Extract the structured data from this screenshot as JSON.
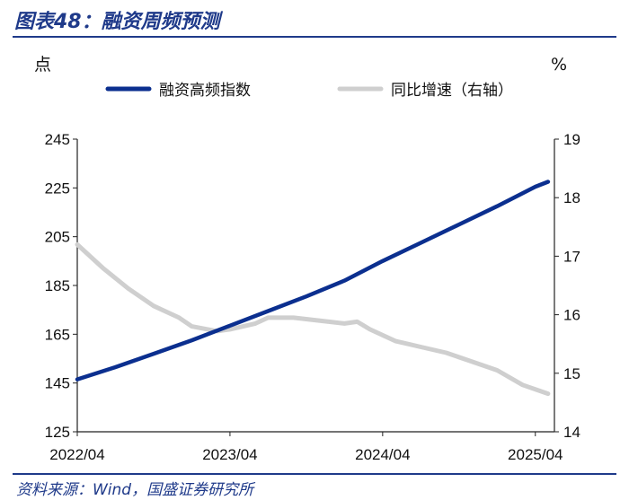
{
  "header": {
    "title": "图表48：融资周频预测"
  },
  "footer": {
    "source": "资料来源：Wind，国盛证券研究所"
  },
  "chart_data": {
    "type": "line",
    "title": "图表48：融资周频预测",
    "left_unit": "点",
    "right_unit": "%",
    "x_tick_labels": [
      "2022/04",
      "2023/04",
      "2024/04",
      "2025/04"
    ],
    "left_axis": {
      "ylim": [
        125,
        245
      ],
      "ticks": [
        "125",
        "145",
        "165",
        "185",
        "205",
        "225",
        "245"
      ]
    },
    "right_axis": {
      "ylim": [
        14,
        19
      ],
      "ticks": [
        "14",
        "15",
        "16",
        "17",
        "18",
        "19"
      ]
    },
    "grid": false,
    "legend_position": "top",
    "series": [
      {
        "name": "融资高频指数",
        "axis": "left",
        "color": "#0b2f8f",
        "points": [
          [
            "2022-04",
            146.5
          ],
          [
            "2022-07",
            151.5
          ],
          [
            "2022-10",
            157.0
          ],
          [
            "2023-01",
            162.5
          ],
          [
            "2023-04",
            168.5
          ],
          [
            "2023-07",
            174.5
          ],
          [
            "2023-10",
            180.5
          ],
          [
            "2024-01",
            187.0
          ],
          [
            "2024-04",
            195.0
          ],
          [
            "2024-07",
            202.5
          ],
          [
            "2024-10",
            210.0
          ],
          [
            "2025-01",
            217.5
          ],
          [
            "2025-04",
            225.5
          ],
          [
            "2025-05",
            227.5
          ]
        ]
      },
      {
        "name": "同比增速（右轴）",
        "axis": "right",
        "color": "#cfcfcf",
        "points": [
          [
            "2022-04",
            17.2
          ],
          [
            "2022-06",
            16.8
          ],
          [
            "2022-08",
            16.45
          ],
          [
            "2022-10",
            16.15
          ],
          [
            "2022-12",
            15.95
          ],
          [
            "2023-01",
            15.8
          ],
          [
            "2023-03",
            15.72
          ],
          [
            "2023-04",
            15.75
          ],
          [
            "2023-06",
            15.85
          ],
          [
            "2023-07",
            15.95
          ],
          [
            "2023-09",
            15.95
          ],
          [
            "2023-11",
            15.9
          ],
          [
            "2024-01",
            15.85
          ],
          [
            "2024-02",
            15.88
          ],
          [
            "2024-03",
            15.75
          ],
          [
            "2024-05",
            15.55
          ],
          [
            "2024-07",
            15.45
          ],
          [
            "2024-09",
            15.35
          ],
          [
            "2024-11",
            15.2
          ],
          [
            "2025-01",
            15.05
          ],
          [
            "2025-03",
            14.8
          ],
          [
            "2025-05",
            14.65
          ]
        ]
      }
    ]
  }
}
